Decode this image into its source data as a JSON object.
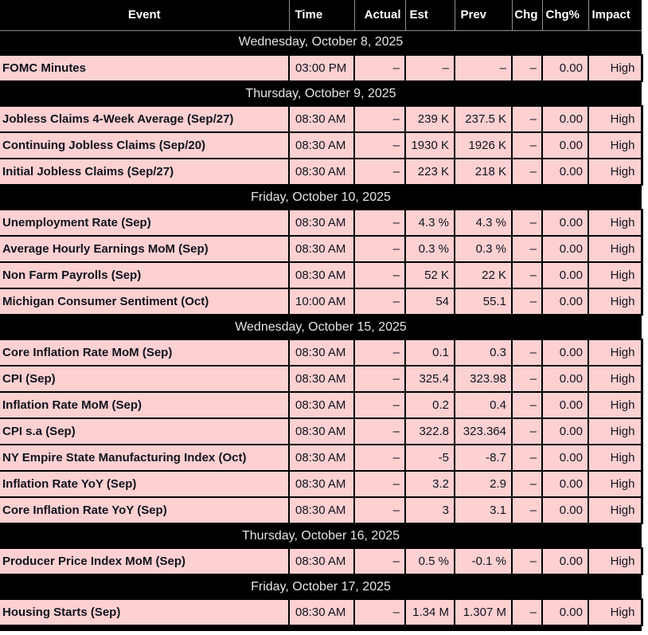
{
  "colors": {
    "header_bg": "#000000",
    "header_text": "#ffffff",
    "header_grid_line": "#8f8f8f",
    "date_row_bg": "#000000",
    "date_row_text": "#e4e4e4",
    "row_bg": "#fdd0d1",
    "row_text": "#10141f",
    "grid_line": "#000000",
    "page_bg": "#ffffff"
  },
  "table": {
    "columns": [
      {
        "key": "event",
        "label": "Event"
      },
      {
        "key": "time",
        "label": "Time"
      },
      {
        "key": "actual",
        "label": "Actual"
      },
      {
        "key": "est",
        "label": "Est"
      },
      {
        "key": "prev",
        "label": "Prev"
      },
      {
        "key": "chg",
        "label": "Chg"
      },
      {
        "key": "chg_pct",
        "label": "Chg%"
      },
      {
        "key": "impact",
        "label": "Impact"
      }
    ],
    "sections": [
      {
        "date": "Wednesday, October 8, 2025",
        "rows": [
          {
            "event": "FOMC Minutes",
            "time": "03:00 PM",
            "actual": "–",
            "est": "–",
            "prev": "–",
            "chg": "–",
            "chg_pct": "0.00",
            "impact": "High"
          }
        ]
      },
      {
        "date": "Thursday, October 9, 2025",
        "rows": [
          {
            "event": "Jobless Claims 4-Week Average (Sep/27)",
            "time": "08:30 AM",
            "actual": "–",
            "est": "239 K",
            "prev": "237.5 K",
            "chg": "–",
            "chg_pct": "0.00",
            "impact": "High"
          },
          {
            "event": "Continuing Jobless Claims (Sep/20)",
            "time": "08:30 AM",
            "actual": "–",
            "est": "1930 K",
            "prev": "1926 K",
            "chg": "–",
            "chg_pct": "0.00",
            "impact": "High"
          },
          {
            "event": "Initial Jobless Claims (Sep/27)",
            "time": "08:30 AM",
            "actual": "–",
            "est": "223 K",
            "prev": "218 K",
            "chg": "–",
            "chg_pct": "0.00",
            "impact": "High"
          }
        ]
      },
      {
        "date": "Friday, October 10, 2025",
        "rows": [
          {
            "event": "Unemployment Rate (Sep)",
            "time": "08:30 AM",
            "actual": "–",
            "est": "4.3 %",
            "prev": "4.3 %",
            "chg": "–",
            "chg_pct": "0.00",
            "impact": "High"
          },
          {
            "event": "Average Hourly Earnings MoM (Sep)",
            "time": "08:30 AM",
            "actual": "–",
            "est": "0.3 %",
            "prev": "0.3 %",
            "chg": "–",
            "chg_pct": "0.00",
            "impact": "High"
          },
          {
            "event": "Non Farm Payrolls (Sep)",
            "time": "08:30 AM",
            "actual": "–",
            "est": "52 K",
            "prev": "22 K",
            "chg": "–",
            "chg_pct": "0.00",
            "impact": "High"
          },
          {
            "event": "Michigan Consumer Sentiment (Oct)",
            "time": "10:00 AM",
            "actual": "–",
            "est": "54",
            "prev": "55.1",
            "chg": "–",
            "chg_pct": "0.00",
            "impact": "High"
          }
        ]
      },
      {
        "date": "Wednesday, October 15, 2025",
        "rows": [
          {
            "event": "Core Inflation Rate MoM (Sep)",
            "time": "08:30 AM",
            "actual": "–",
            "est": "0.1",
            "prev": "0.3",
            "chg": "–",
            "chg_pct": "0.00",
            "impact": "High"
          },
          {
            "event": "CPI (Sep)",
            "time": "08:30 AM",
            "actual": "–",
            "est": "325.4",
            "prev": "323.98",
            "chg": "–",
            "chg_pct": "0.00",
            "impact": "High"
          },
          {
            "event": "Inflation Rate MoM (Sep)",
            "time": "08:30 AM",
            "actual": "–",
            "est": "0.2",
            "prev": "0.4",
            "chg": "–",
            "chg_pct": "0.00",
            "impact": "High"
          },
          {
            "event": "CPI s.a (Sep)",
            "time": "08:30 AM",
            "actual": "–",
            "est": "322.8",
            "prev": "323.364",
            "chg": "–",
            "chg_pct": "0.00",
            "impact": "High"
          },
          {
            "event": "NY Empire State Manufacturing Index (Oct)",
            "time": "08:30 AM",
            "actual": "–",
            "est": "-5",
            "prev": "-8.7",
            "chg": "–",
            "chg_pct": "0.00",
            "impact": "High"
          },
          {
            "event": "Inflation Rate YoY (Sep)",
            "time": "08:30 AM",
            "actual": "–",
            "est": "3.2",
            "prev": "2.9",
            "chg": "–",
            "chg_pct": "0.00",
            "impact": "High"
          },
          {
            "event": "Core Inflation Rate YoY (Sep)",
            "time": "08:30 AM",
            "actual": "–",
            "est": "3",
            "prev": "3.1",
            "chg": "–",
            "chg_pct": "0.00",
            "impact": "High"
          }
        ]
      },
      {
        "date": "Thursday, October 16, 2025",
        "rows": [
          {
            "event": "Producer Price Index MoM (Sep)",
            "time": "08:30 AM",
            "actual": "–",
            "est": "0.5 %",
            "prev": "-0.1 %",
            "chg": "–",
            "chg_pct": "0.00",
            "impact": "High"
          }
        ]
      },
      {
        "date": "Friday, October 17, 2025",
        "rows": [
          {
            "event": "Housing Starts (Sep)",
            "time": "08:30 AM",
            "actual": "–",
            "est": "1.34 M",
            "prev": "1.307 M",
            "chg": "–",
            "chg_pct": "0.00",
            "impact": "High"
          }
        ]
      }
    ]
  }
}
